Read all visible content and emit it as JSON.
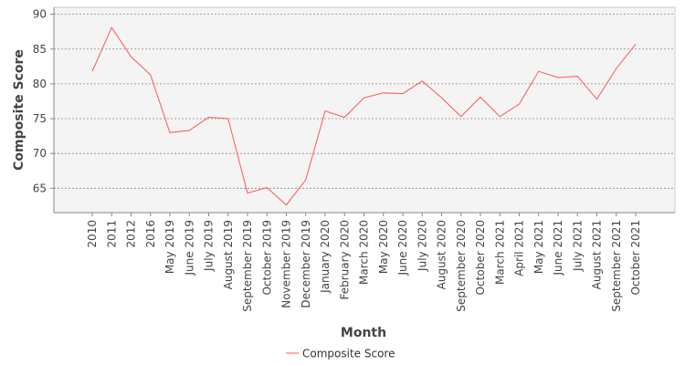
{
  "chart_data": {
    "type": "line",
    "title": "",
    "xlabel": "Month",
    "ylabel": "Composite Score",
    "ylim": [
      61.5,
      91
    ],
    "yticks": [
      65,
      70,
      75,
      80,
      85,
      90
    ],
    "grid": true,
    "legend": "bottom",
    "categories": [
      "2010",
      "2011",
      "2012",
      "2016",
      "May 2019",
      "June 2019",
      "July 2019",
      "August 2019",
      "September 2019",
      "October 2019",
      "November 2019",
      "December 2019",
      "January 2020",
      "February 2020",
      "March 2020",
      "May 2020",
      "June 2020",
      "July 2020",
      "August 2020",
      "September 2020",
      "October 2020",
      "March 2021",
      "April 2021",
      "May 2021",
      "June 2021",
      "July 2021",
      "August 2021",
      "September 2021",
      "October 2021"
    ],
    "series": [
      {
        "name": "Composite Score",
        "color": "#ff5555",
        "values": [
          81.8,
          88.1,
          83.9,
          81.3,
          73.0,
          73.3,
          75.2,
          75.0,
          64.3,
          65.1,
          62.6,
          66.2,
          76.1,
          75.2,
          78.0,
          78.7,
          78.6,
          80.4,
          78.0,
          75.3,
          78.1,
          75.3,
          77.1,
          81.8,
          80.9,
          81.1,
          77.8,
          82.2,
          85.7
        ]
      }
    ]
  },
  "colors": {
    "plot_background": "#f4f4f4",
    "grid": "#888888",
    "axis": "#888888",
    "series": "#ff5555"
  }
}
